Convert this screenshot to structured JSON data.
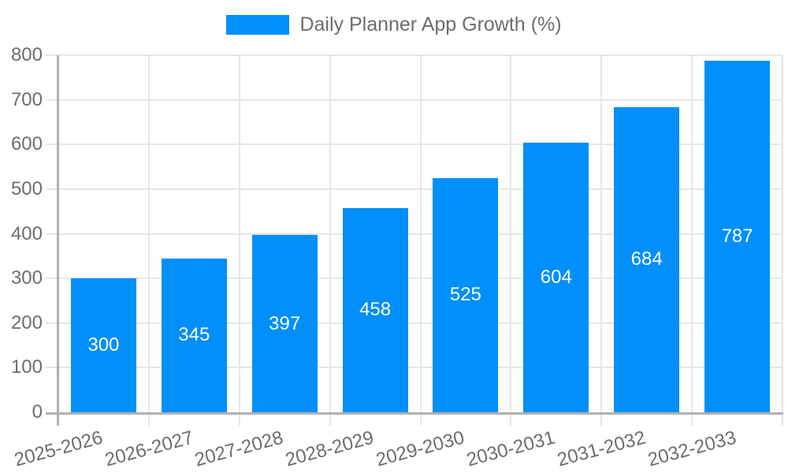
{
  "chart_data": {
    "type": "bar",
    "title": "Daily Planner App Growth (%)",
    "categories": [
      "2025-2026",
      "2026-2027",
      "2027-2028",
      "2028-2029",
      "2029-2030",
      "2030-2031",
      "2031-2032",
      "2032-2033"
    ],
    "series": [
      {
        "name": "Daily Planner App Growth (%)",
        "color": "#008FFB",
        "values": [
          300,
          345,
          397,
          458,
          525,
          604,
          684,
          787
        ]
      }
    ],
    "value_labels_shown": true,
    "value_label_color": "#FFFFFF",
    "xlabel": "",
    "ylabel": "",
    "ylim": [
      0,
      800
    ],
    "ytick_step": 100,
    "ytick_labels": [
      "0",
      "100",
      "200",
      "300",
      "400",
      "500",
      "600",
      "700",
      "800"
    ],
    "grid": "both",
    "legend_position": "top",
    "x_label_rotation_deg": -15,
    "colors": {
      "axis_text": "#6D6D6D",
      "grid_line": "#E6E6E6",
      "axis_line": "#B1B1B1",
      "background": "#FFFFFF"
    }
  }
}
